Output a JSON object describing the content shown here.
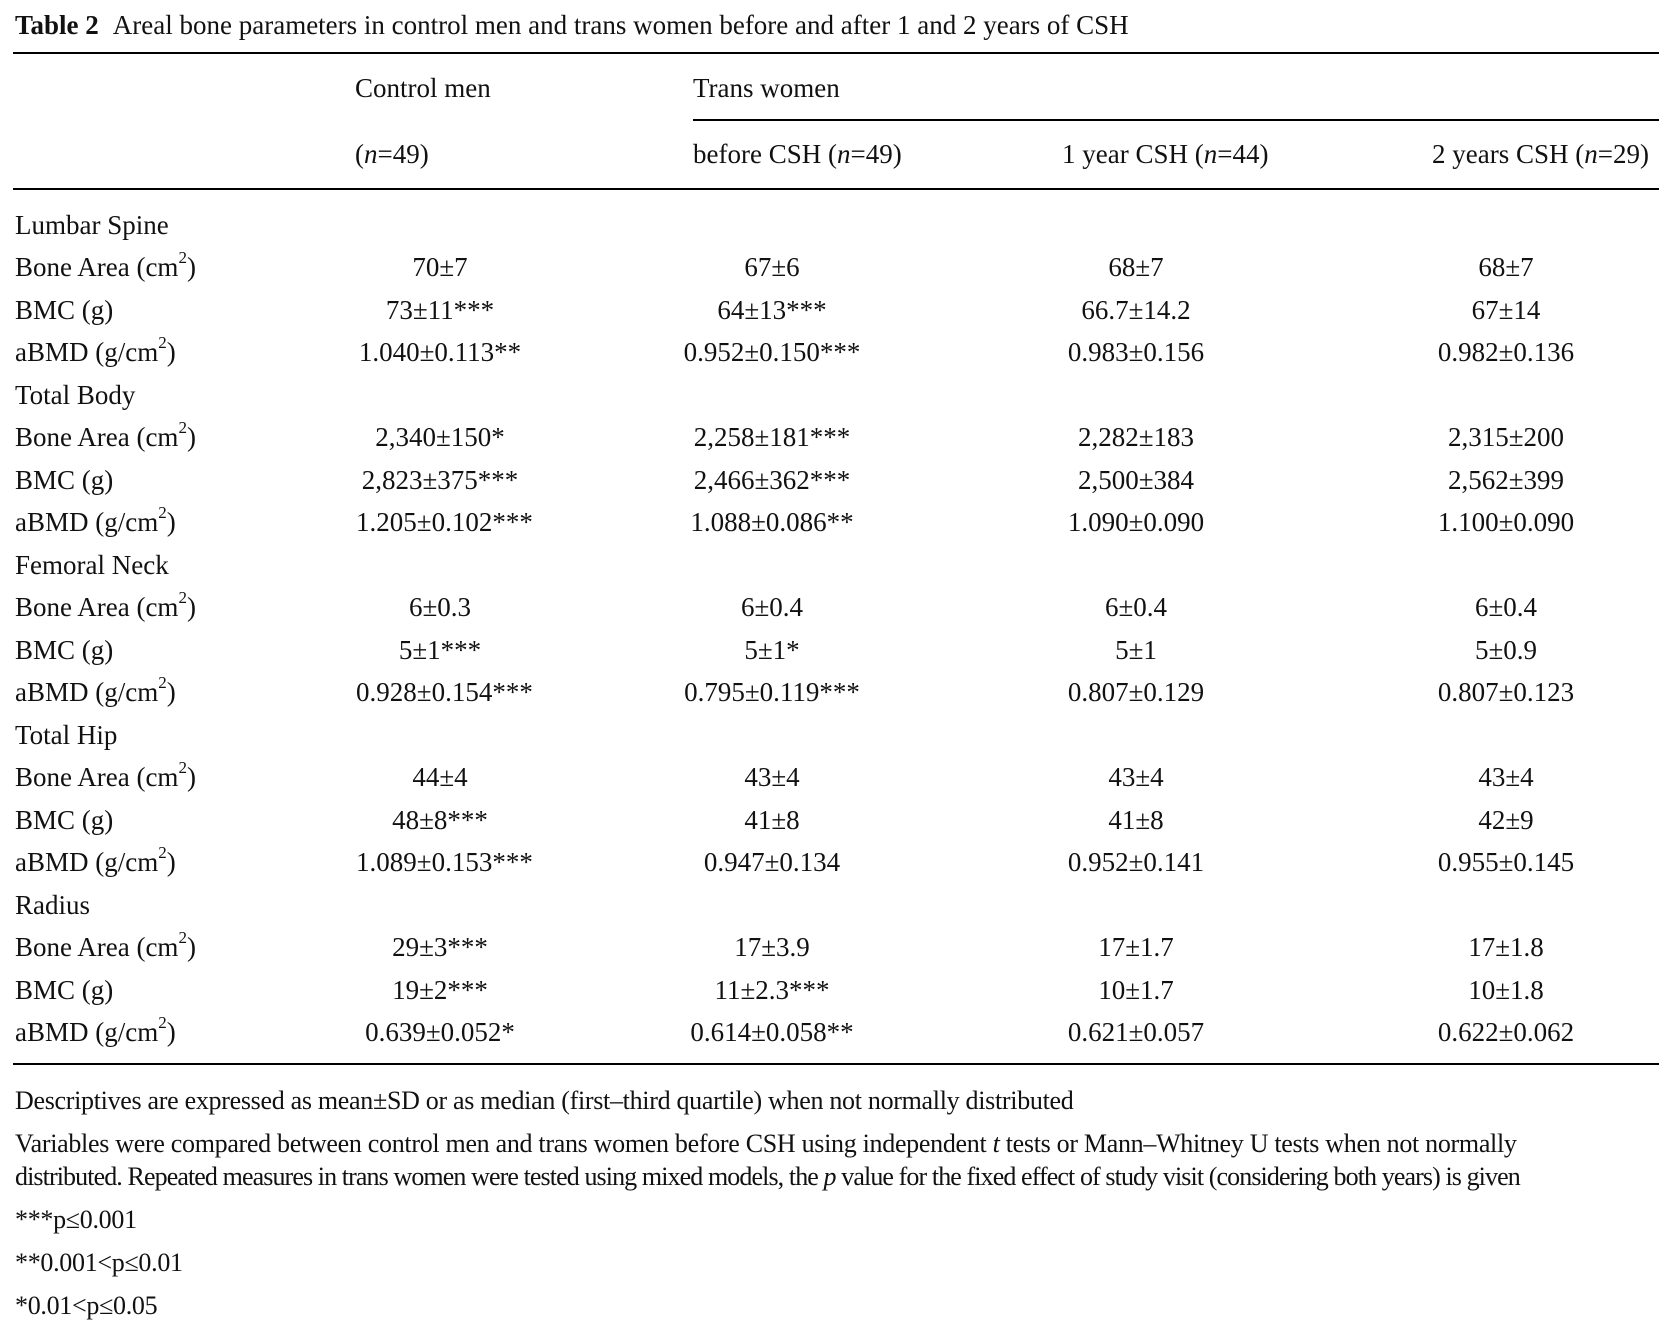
{
  "title": {
    "label": "Table 2",
    "text": "Areal bone parameters in control men and trans women before and after 1 and 2 years of CSH"
  },
  "header": {
    "group_control": "Control men",
    "group_trans": "Trans women",
    "columns": [
      {
        "pre": "(",
        "n": "n",
        "post": "=49)"
      },
      {
        "pre": "before CSH (",
        "n": "n",
        "post": "=49)"
      },
      {
        "pre": "1 year CSH (",
        "n": "n",
        "post": "=44)"
      },
      {
        "pre": "2 years CSH (",
        "n": "n",
        "post": "=29)"
      }
    ]
  },
  "sections": [
    {
      "name": "Lumbar Spine",
      "rows": [
        {
          "main": "Bone Area (cm",
          "sup": "2",
          "end": ")",
          "values": [
            "70±7",
            "67±6",
            "68±7",
            "68±7"
          ]
        },
        {
          "main": "BMC (g)",
          "sup": "",
          "end": "",
          "values": [
            "73±11***",
            "64±13***",
            "66.7±14.2",
            "67±14"
          ]
        },
        {
          "main": "aBMD (g/cm",
          "sup": "2",
          "end": ")",
          "values": [
            "1.040±0.113**",
            "0.952±0.150***",
            "0.983±0.156",
            "0.982±0.136"
          ]
        }
      ]
    },
    {
      "name": "Total Body",
      "rows": [
        {
          "main": "Bone Area (cm",
          "sup": "2",
          "end": ")",
          "values": [
            "2,340±150*",
            "2,258±181***",
            "2,282±183",
            "2,315±200"
          ]
        },
        {
          "main": "BMC (g)",
          "sup": "",
          "end": "",
          "values": [
            "2,823±375***",
            "2,466±362***",
            "2,500±384",
            "2,562±399"
          ]
        },
        {
          "main": "aBMD (g/cm",
          "sup": "2",
          "end": ")",
          "values": [
            "1.205±0.102***",
            "1.088±0.086**",
            "1.090±0.090",
            "1.100±0.090"
          ]
        }
      ]
    },
    {
      "name": "Femoral Neck",
      "rows": [
        {
          "main": "Bone Area (cm",
          "sup": "2",
          "end": ")",
          "values": [
            "6±0.3",
            "6±0.4",
            "6±0.4",
            "6±0.4"
          ]
        },
        {
          "main": "BMC (g)",
          "sup": "",
          "end": "",
          "values": [
            "5±1***",
            "5±1*",
            "5±1",
            "5±0.9"
          ]
        },
        {
          "main": "aBMD (g/cm",
          "sup": "2",
          "end": ")",
          "values": [
            "0.928±0.154***",
            "0.795±0.119***",
            "0.807±0.129",
            "0.807±0.123"
          ]
        }
      ]
    },
    {
      "name": "Total Hip",
      "rows": [
        {
          "main": "Bone Area (cm",
          "sup": "2",
          "end": ")",
          "values": [
            "44±4",
            "43±4",
            "43±4",
            "43±4"
          ]
        },
        {
          "main": "BMC (g)",
          "sup": "",
          "end": "",
          "values": [
            "48±8***",
            "41±8",
            "41±8",
            "42±9"
          ]
        },
        {
          "main": "aBMD (g/cm",
          "sup": "2",
          "end": ")",
          "values": [
            "1.089±0.153***",
            "0.947±0.134",
            "0.952±0.141",
            "0.955±0.145"
          ]
        }
      ]
    },
    {
      "name": "Radius",
      "rows": [
        {
          "main": "Bone Area (cm",
          "sup": "2",
          "end": ")",
          "values": [
            "29±3***",
            "17±3.9",
            "17±1.7",
            "17±1.8"
          ]
        },
        {
          "main": "BMC (g)",
          "sup": "",
          "end": "",
          "values": [
            "19±2***",
            "11±2.3***",
            "10±1.7",
            "10±1.8"
          ]
        },
        {
          "main": "aBMD (g/cm",
          "sup": "2",
          "end": ")",
          "values": [
            "0.639±0.052*",
            "0.614±0.058**",
            "0.621±0.057",
            "0.622±0.062"
          ]
        }
      ]
    }
  ],
  "notes": {
    "descriptives": "Descriptives are expressed as mean±SD or as median (first–third quartile) when not normally distributed",
    "methods_1a": "Variables were compared between control men and trans women before CSH using independent ",
    "methods_1t": "t",
    "methods_1b": " tests or Mann–Whitney U tests when not normally",
    "methods_2a": "distributed. Repeated measures in trans women were tested using mixed models, the ",
    "methods_2p": "p",
    "methods_2b": " value for the fixed effect of study visit (considering both years) is given",
    "sig3": "***p≤0.001",
    "sig2": "**0.001<p≤0.01",
    "sig1": "*0.01<p≤0.05"
  }
}
